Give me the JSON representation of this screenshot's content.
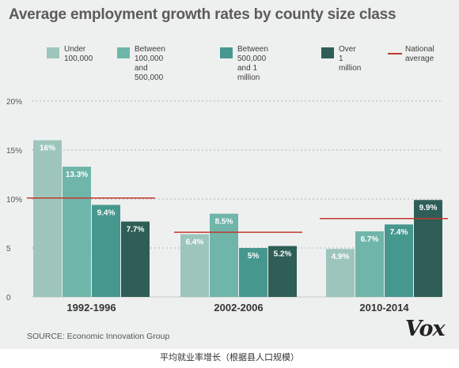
{
  "title": "Average employment growth rates by county size class",
  "legend": [
    {
      "label": "Under\n100,000",
      "color": "#9dc5bc",
      "kind": "swatch"
    },
    {
      "label": "Between 100,000\nand 500,000",
      "color": "#6fb5a9",
      "kind": "swatch"
    },
    {
      "label": "Between 500,000\nand 1 million",
      "color": "#46988f",
      "kind": "swatch"
    },
    {
      "label": "Over 1\nmillion",
      "color": "#2e5e57",
      "kind": "swatch"
    },
    {
      "label": "National\naverage",
      "color": "#c0392b",
      "kind": "line"
    }
  ],
  "chart_data": {
    "type": "bar",
    "title": "Average employment growth rates by county size class",
    "categories": [
      "1992-1996",
      "2002-2006",
      "2010-2014"
    ],
    "series": [
      {
        "name": "Under 100,000",
        "values": [
          16,
          6.4,
          4.9
        ],
        "labels": [
          "16%",
          "6.4%",
          "4.9%"
        ],
        "color": "#9dc5bc"
      },
      {
        "name": "Between 100,000 and 500,000",
        "values": [
          13.3,
          8.5,
          6.7
        ],
        "labels": [
          "13.3%",
          "8.5%",
          "6.7%"
        ],
        "color": "#6fb5a9"
      },
      {
        "name": "Between 500,000 and 1 million",
        "values": [
          9.4,
          5,
          7.4
        ],
        "labels": [
          "9.4%",
          "5%",
          "7.4%"
        ],
        "color": "#46988f"
      },
      {
        "name": "Over 1 million",
        "values": [
          7.7,
          5.2,
          9.9
        ],
        "labels": [
          "7.7%",
          "5.2%",
          "9.9%"
        ],
        "color": "#2e5e57"
      }
    ],
    "national_average": {
      "name": "National average",
      "values": [
        10.1,
        6.6,
        8.0
      ],
      "color": "#c0392b"
    },
    "yticks": [
      {
        "value": 0,
        "label": "0"
      },
      {
        "value": 5,
        "label": "5"
      },
      {
        "value": 10,
        "label": "10%"
      },
      {
        "value": 15,
        "label": "15%"
      },
      {
        "value": 20,
        "label": "20%"
      }
    ],
    "ylim": [
      0,
      20
    ],
    "grid": true,
    "legend_position": "top"
  },
  "source": "SOURCE: Economic Innovation Group",
  "brand": "Vox",
  "caption": "平均就业率增长（根据县人口规模）"
}
